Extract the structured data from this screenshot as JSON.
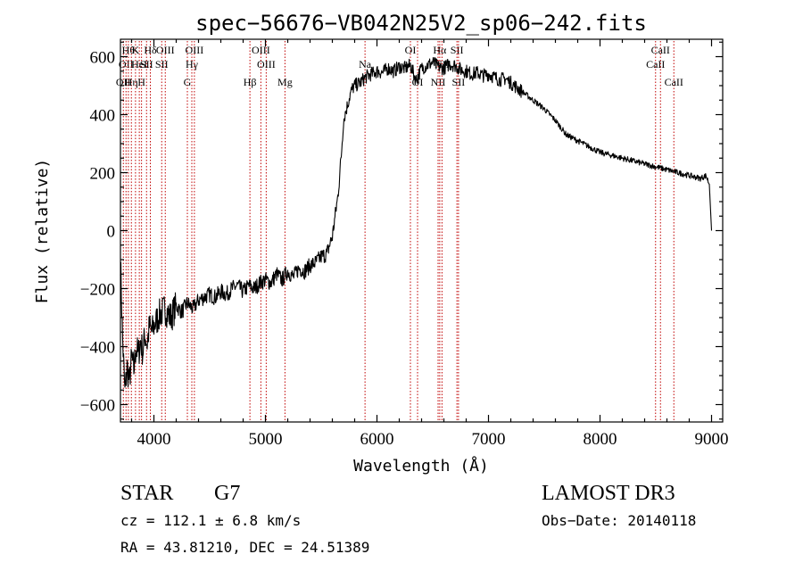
{
  "chart_data": {
    "type": "line",
    "title": "spec−56676−VB042N25V2_sp06−242.fits",
    "xlabel": "Wavelength (Å)",
    "ylabel": "Flux (relative)",
    "xlim": [
      3700,
      9100
    ],
    "ylim": [
      -660,
      660
    ],
    "xticks": [
      {
        "value": 4000,
        "label": "4000"
      },
      {
        "value": 5000,
        "label": "5000"
      },
      {
        "value": 6000,
        "label": "6000"
      },
      {
        "value": 7000,
        "label": "7000"
      },
      {
        "value": 8000,
        "label": "8000"
      },
      {
        "value": 9000,
        "label": "9000"
      }
    ],
    "yticks": [
      {
        "value": -600,
        "label": "−600"
      },
      {
        "value": -400,
        "label": "−400"
      },
      {
        "value": -200,
        "label": "−200"
      },
      {
        "value": 0,
        "label": "0"
      },
      {
        "value": 200,
        "label": "200"
      },
      {
        "value": 400,
        "label": "400"
      },
      {
        "value": 600,
        "label": "600"
      }
    ],
    "grid": false,
    "series": [
      {
        "x": [
          3700,
          3720,
          3740,
          3760,
          3780,
          3800,
          3820,
          3840,
          3860,
          3880,
          3900,
          3920,
          3940,
          3960,
          3980,
          4000,
          4050,
          4100,
          4150,
          4200,
          4250,
          4300,
          4350,
          4400,
          4450,
          4500,
          4550,
          4600,
          4650,
          4700,
          4750,
          4800,
          4850,
          4900,
          4950,
          5000,
          5050,
          5100,
          5150,
          5200,
          5250,
          5300,
          5350,
          5400,
          5450,
          5500,
          5550,
          5600,
          5650,
          5680,
          5700,
          5720,
          5740,
          5760,
          5780,
          5800,
          5850,
          5900,
          5950,
          6000,
          6050,
          6100,
          6150,
          6200,
          6250,
          6300,
          6350,
          6400,
          6450,
          6500,
          6550,
          6600,
          6650,
          6700,
          6750,
          6800,
          6850,
          6900,
          6950,
          7000,
          7050,
          7100,
          7150,
          7200,
          7300,
          7400,
          7500,
          7600,
          7700,
          7800,
          7900,
          8000,
          8100,
          8200,
          8300,
          8400,
          8500,
          8600,
          8700,
          8800,
          8900,
          8950,
          8980,
          9000
        ],
        "y": [
          -100,
          -380,
          -560,
          -470,
          -520,
          -440,
          -480,
          -400,
          -430,
          -380,
          -420,
          -360,
          -390,
          -330,
          -350,
          -330,
          -290,
          -270,
          -300,
          -260,
          -280,
          -250,
          -270,
          -240,
          -230,
          -220,
          -230,
          -210,
          -220,
          -200,
          -190,
          -210,
          -190,
          -200,
          -180,
          -170,
          -180,
          -150,
          -170,
          -140,
          -160,
          -130,
          -140,
          -120,
          -110,
          -90,
          -80,
          -20,
          120,
          260,
          380,
          410,
          440,
          470,
          490,
          500,
          510,
          530,
          540,
          550,
          545,
          560,
          550,
          565,
          560,
          570,
          520,
          560,
          570,
          580,
          565,
          560,
          575,
          570,
          555,
          550,
          540,
          545,
          535,
          540,
          530,
          520,
          525,
          510,
          480,
          450,
          420,
          380,
          330,
          310,
          290,
          270,
          260,
          250,
          240,
          230,
          220,
          210,
          200,
          190,
          180,
          190,
          160,
          0
        ]
      }
    ],
    "line_markers": [
      {
        "x": 3726,
        "label": "OII",
        "row": 2
      },
      {
        "x": 3750,
        "label": "OII",
        "row": 1
      },
      {
        "x": 3771,
        "label": "Hθ",
        "row": 0
      },
      {
        "x": 3798,
        "label": "Hη",
        "row": 2
      },
      {
        "x": 3835,
        "label": "K",
        "row": 0
      },
      {
        "x": 3869,
        "label": "HeI",
        "row": 1
      },
      {
        "x": 3889,
        "label": "H",
        "row": 2
      },
      {
        "x": 3934,
        "label": "SII",
        "row": 1
      },
      {
        "x": 3968,
        "label": "Hδ",
        "row": 0
      },
      {
        "x": 4070,
        "label": "SII",
        "row": 1
      },
      {
        "x": 4102,
        "label": "OIII",
        "row": 0
      },
      {
        "x": 4300,
        "label": "G",
        "row": 2
      },
      {
        "x": 4340,
        "label": "Hγ",
        "row": 1
      },
      {
        "x": 4363,
        "label": "OIII",
        "row": 0
      },
      {
        "x": 4861,
        "label": "Hβ",
        "row": 2
      },
      {
        "x": 4959,
        "label": "OIII",
        "row": 0
      },
      {
        "x": 5007,
        "label": "OIII",
        "row": 1
      },
      {
        "x": 5175,
        "label": "Mg",
        "row": 2
      },
      {
        "x": 5893,
        "label": "Na",
        "row": 1
      },
      {
        "x": 6300,
        "label": "OI",
        "row": 0
      },
      {
        "x": 6364,
        "label": "OI",
        "row": 2
      },
      {
        "x": 6548,
        "label": "NII",
        "row": 2
      },
      {
        "x": 6563,
        "label": "Hα",
        "row": 0
      },
      {
        "x": 6583,
        "label": "NII",
        "row": 1
      },
      {
        "x": 6717,
        "label": "SII",
        "row": 0
      },
      {
        "x": 6731,
        "label": "SII",
        "row": 2
      },
      {
        "x": 8498,
        "label": "CaII",
        "row": 1
      },
      {
        "x": 8542,
        "label": "CaII",
        "row": 0
      },
      {
        "x": 8662,
        "label": "CaII",
        "row": 2
      }
    ]
  },
  "info": {
    "class": "STAR",
    "subclass": "G7",
    "survey": "LAMOST DR3",
    "cz": "cz = 112.1 ± 6.8 km/s",
    "obs_date": "Obs−Date: 20140118",
    "radec": "RA =  43.81210, DEC =  24.51389"
  }
}
